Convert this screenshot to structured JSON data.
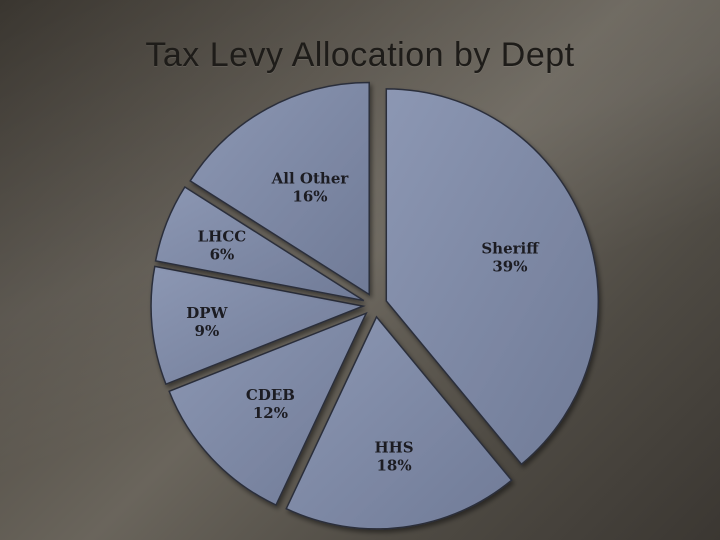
{
  "title": "Tax Levy Allocation by Dept",
  "chart_data": {
    "type": "pie",
    "title": "Tax Levy Allocation by Dept",
    "exploded": true,
    "start": "top",
    "direction": "clockwise",
    "slices": [
      {
        "label": "Sheriff",
        "value": 39,
        "display": "39%"
      },
      {
        "label": "HHS",
        "value": 18,
        "display": "18%"
      },
      {
        "label": "CDEB",
        "value": 12,
        "display": "12%"
      },
      {
        "label": "DPW",
        "value": 9,
        "display": "9%"
      },
      {
        "label": "LHCC",
        "value": 6,
        "display": "6%"
      },
      {
        "label": "All Other",
        "value": 16,
        "display": "16%"
      }
    ],
    "colors": {
      "slice_fill": "#7f8aa6",
      "slice_stroke": "#2c2f3a",
      "label": "#1c1c22"
    }
  }
}
